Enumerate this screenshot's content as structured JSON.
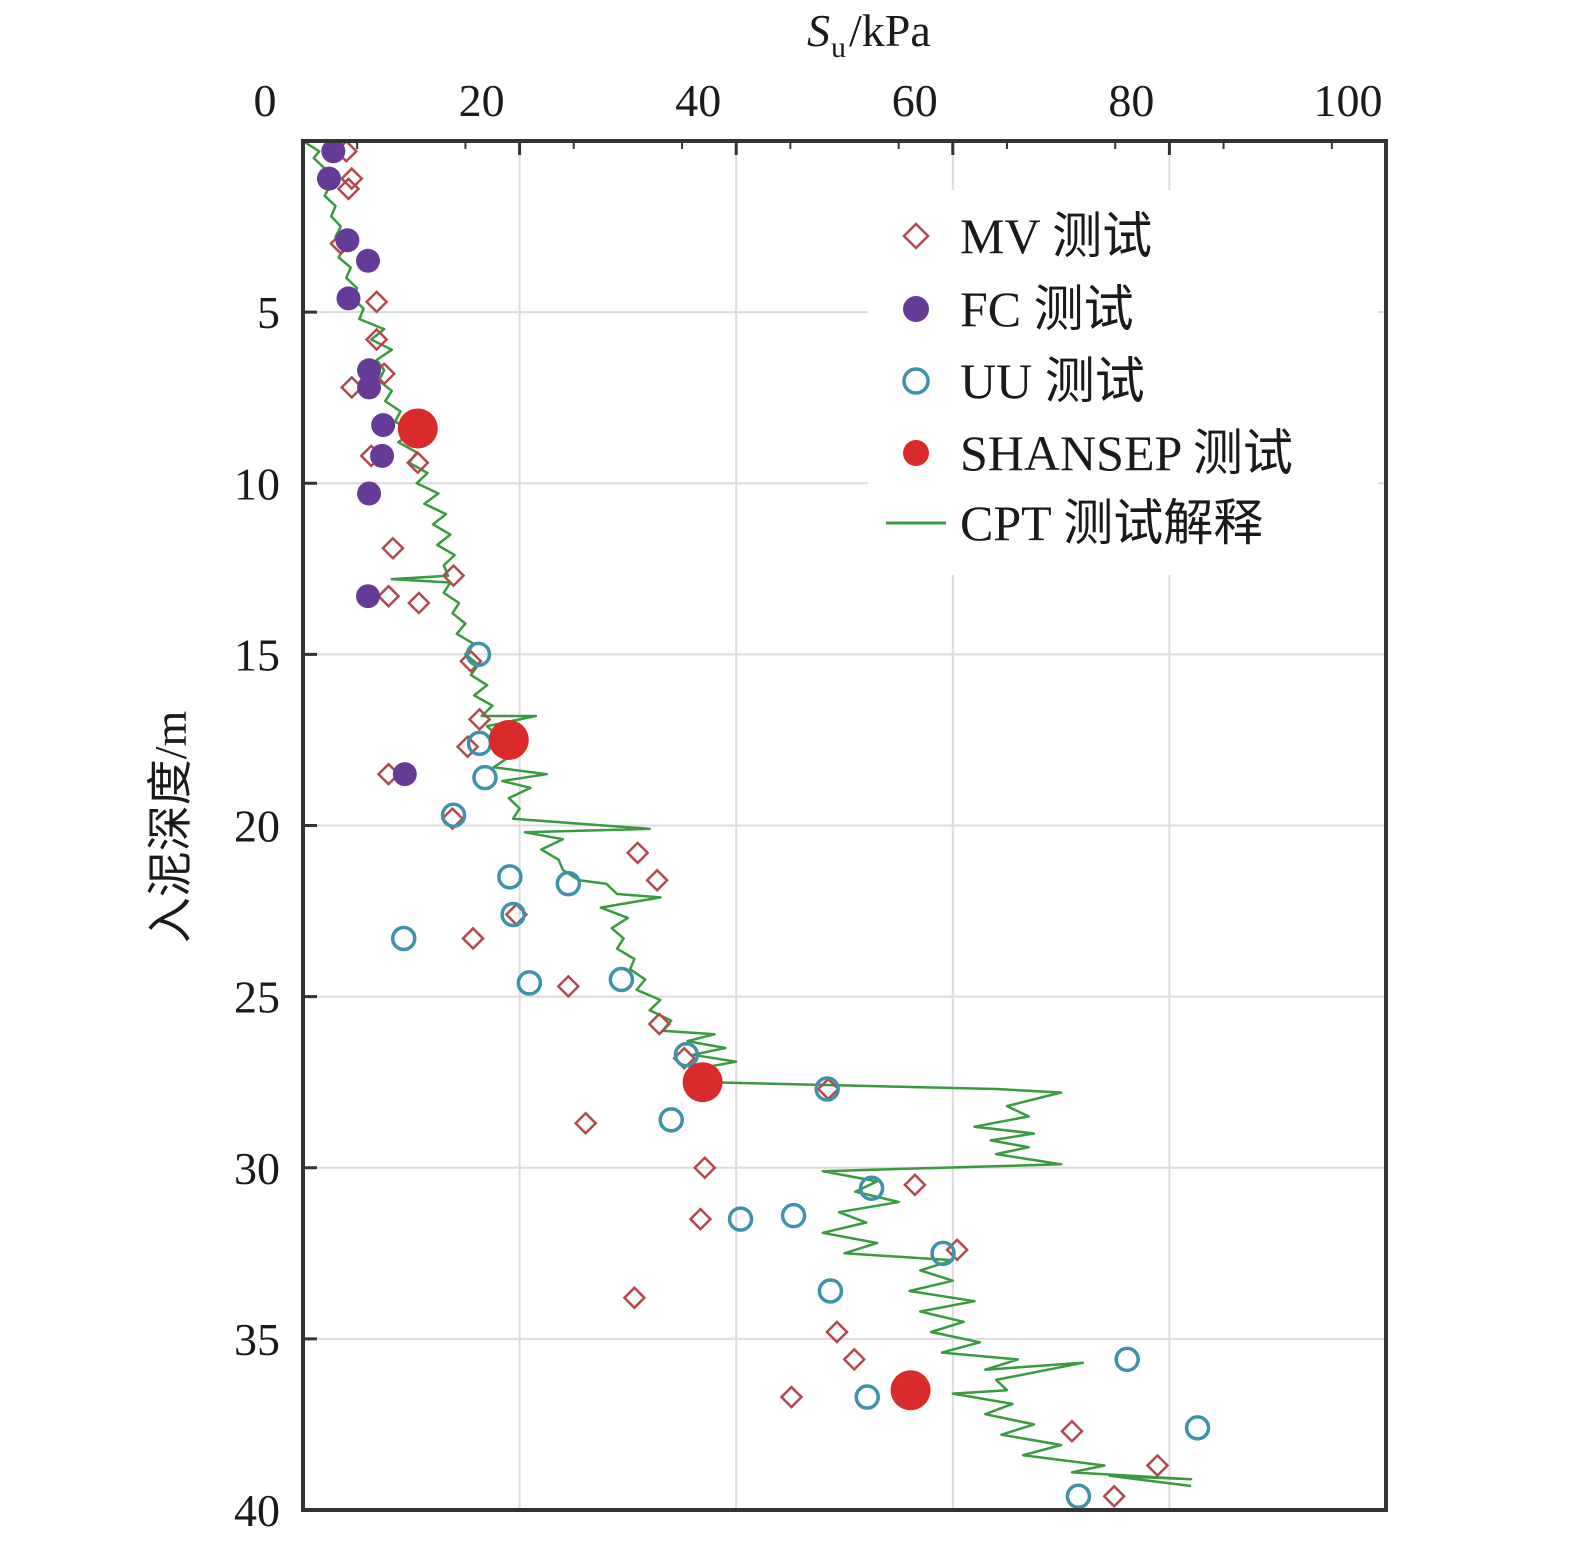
{
  "chart_data": {
    "type": "scatter",
    "x_axis": {
      "label_main": "S",
      "label_sub": "u",
      "label_unit": "/kPa",
      "range": [
        0,
        100
      ],
      "ticks": [
        0,
        20,
        40,
        60,
        80,
        100
      ],
      "position": "top"
    },
    "y_axis": {
      "label": "入泥深度/m",
      "range": [
        0,
        40
      ],
      "ticks": [
        5,
        10,
        15,
        20,
        25,
        30,
        35,
        40
      ],
      "inverted": true
    },
    "grid": true,
    "legend_position": "top-right",
    "colors": {
      "mv": "#b5484f",
      "fc": "#663b97",
      "uu": "#3f92a8",
      "shansep": "#d92b2b",
      "cpt": "#3a9a3f",
      "grid": "#dcdcdc",
      "frame": "#333333"
    },
    "series": [
      {
        "name": "MV 测试",
        "key": "mv",
        "marker": "diamond-open",
        "points": [
          [
            4.0,
            0.3
          ],
          [
            4.5,
            1.1
          ],
          [
            4.2,
            1.4
          ],
          [
            3.5,
            3.0
          ],
          [
            6.8,
            4.7
          ],
          [
            6.8,
            5.8
          ],
          [
            7.5,
            6.8
          ],
          [
            4.5,
            7.2
          ],
          [
            6.3,
            9.2
          ],
          [
            10.6,
            9.4
          ],
          [
            8.3,
            11.9
          ],
          [
            13.9,
            12.7
          ],
          [
            7.9,
            13.3
          ],
          [
            10.7,
            13.5
          ],
          [
            15.5,
            15.2
          ],
          [
            16.3,
            16.9
          ],
          [
            15.2,
            17.7
          ],
          [
            7.9,
            18.5
          ],
          [
            13.8,
            19.8
          ],
          [
            30.9,
            20.8
          ],
          [
            32.7,
            21.6
          ],
          [
            19.7,
            22.6
          ],
          [
            15.7,
            23.3
          ],
          [
            24.5,
            24.7
          ],
          [
            32.9,
            25.8
          ],
          [
            35.2,
            26.8
          ],
          [
            48.5,
            27.7
          ],
          [
            26.1,
            28.7
          ],
          [
            37.1,
            30.0
          ],
          [
            56.5,
            30.5
          ],
          [
            36.7,
            31.5
          ],
          [
            60.4,
            32.4
          ],
          [
            30.6,
            33.8
          ],
          [
            49.3,
            34.8
          ],
          [
            50.9,
            35.6
          ],
          [
            45.1,
            36.7
          ],
          [
            71.0,
            37.7
          ],
          [
            78.9,
            38.7
          ],
          [
            74.9,
            39.6
          ]
        ]
      },
      {
        "name": "FC 测试",
        "key": "fc",
        "marker": "circle-filled",
        "points": [
          [
            2.8,
            0.3
          ],
          [
            2.4,
            1.1
          ],
          [
            4.1,
            2.9
          ],
          [
            6.0,
            3.5
          ],
          [
            4.2,
            4.6
          ],
          [
            6.1,
            6.7
          ],
          [
            6.1,
            7.2
          ],
          [
            7.4,
            8.3
          ],
          [
            7.3,
            9.2
          ],
          [
            6.1,
            10.3
          ],
          [
            6.0,
            13.3
          ],
          [
            9.4,
            18.5
          ]
        ]
      },
      {
        "name": "UU 测试",
        "key": "uu",
        "marker": "circle-open",
        "points": [
          [
            16.2,
            15.0
          ],
          [
            16.3,
            17.6
          ],
          [
            16.8,
            18.6
          ],
          [
            13.9,
            19.7
          ],
          [
            19.1,
            21.5
          ],
          [
            24.5,
            21.7
          ],
          [
            19.4,
            22.6
          ],
          [
            9.3,
            23.3
          ],
          [
            20.9,
            24.6
          ],
          [
            29.4,
            24.5
          ],
          [
            35.4,
            26.7
          ],
          [
            34.0,
            28.6
          ],
          [
            48.4,
            27.7
          ],
          [
            52.5,
            30.6
          ],
          [
            40.4,
            31.5
          ],
          [
            45.3,
            31.4
          ],
          [
            59.1,
            32.5
          ],
          [
            48.7,
            33.6
          ],
          [
            52.1,
            36.7
          ],
          [
            76.1,
            35.6
          ],
          [
            82.6,
            37.6
          ],
          [
            71.6,
            39.6
          ]
        ]
      },
      {
        "name": "SHANSEP 测试",
        "key": "shansep",
        "marker": "circle-filled-large",
        "points": [
          [
            10.6,
            8.4
          ],
          [
            19.0,
            17.5
          ],
          [
            36.9,
            27.5
          ],
          [
            56.1,
            36.5
          ]
        ]
      },
      {
        "name": "CPT 测试解释",
        "key": "cpt",
        "marker": "line",
        "points": [
          [
            0,
            0
          ],
          [
            0.5,
            0.1
          ],
          [
            1.5,
            0.3
          ],
          [
            1.0,
            0.5
          ],
          [
            2.0,
            0.8
          ],
          [
            1.5,
            1.0
          ],
          [
            2.5,
            1.3
          ],
          [
            2.0,
            1.6
          ],
          [
            3.0,
            1.9
          ],
          [
            2.6,
            2.2
          ],
          [
            3.5,
            2.5
          ],
          [
            3.0,
            2.8
          ],
          [
            3.8,
            3.1
          ],
          [
            3.3,
            3.4
          ],
          [
            4.4,
            3.7
          ],
          [
            4.0,
            4.0
          ],
          [
            5.0,
            4.3
          ],
          [
            4.6,
            4.6
          ],
          [
            5.6,
            4.9
          ],
          [
            5.2,
            5.2
          ],
          [
            7.5,
            5.5
          ],
          [
            6.3,
            5.8
          ],
          [
            8.2,
            6.1
          ],
          [
            6.8,
            6.4
          ],
          [
            7.5,
            6.7
          ],
          [
            7.0,
            7.0
          ],
          [
            8.2,
            7.3
          ],
          [
            7.6,
            7.6
          ],
          [
            9.0,
            7.9
          ],
          [
            8.5,
            8.2
          ],
          [
            10.2,
            8.5
          ],
          [
            8.8,
            8.8
          ],
          [
            10.5,
            9.1
          ],
          [
            9.8,
            9.4
          ],
          [
            11.5,
            9.7
          ],
          [
            10.5,
            10.0
          ],
          [
            12.5,
            10.3
          ],
          [
            11.2,
            10.6
          ],
          [
            13.2,
            10.9
          ],
          [
            12.0,
            11.2
          ],
          [
            13.6,
            11.5
          ],
          [
            12.4,
            11.8
          ],
          [
            14.0,
            12.1
          ],
          [
            13.0,
            12.4
          ],
          [
            13.4,
            12.7
          ],
          [
            8.2,
            12.8
          ],
          [
            13.6,
            12.9
          ],
          [
            13.0,
            13.2
          ],
          [
            14.4,
            13.5
          ],
          [
            13.8,
            13.8
          ],
          [
            15.0,
            14.1
          ],
          [
            14.2,
            14.4
          ],
          [
            15.8,
            14.7
          ],
          [
            15.0,
            15.0
          ],
          [
            16.2,
            15.3
          ],
          [
            15.5,
            15.6
          ],
          [
            17.0,
            15.9
          ],
          [
            15.8,
            16.2
          ],
          [
            17.5,
            16.5
          ],
          [
            16.5,
            16.8
          ],
          [
            21.5,
            16.8
          ],
          [
            17.0,
            17.1
          ],
          [
            18.0,
            17.4
          ],
          [
            17.2,
            17.7
          ],
          [
            19.0,
            18.0
          ],
          [
            17.6,
            18.3
          ],
          [
            22.5,
            18.5
          ],
          [
            18.4,
            18.7
          ],
          [
            21.0,
            18.9
          ],
          [
            19.0,
            19.2
          ],
          [
            20.0,
            19.5
          ],
          [
            19.4,
            19.8
          ],
          [
            32.0,
            20.1
          ],
          [
            20.5,
            20.2
          ],
          [
            24.0,
            20.4
          ],
          [
            22.0,
            20.7
          ],
          [
            23.6,
            21.0
          ],
          [
            24.0,
            21.3
          ],
          [
            25.5,
            21.6
          ],
          [
            28.0,
            21.7
          ],
          [
            29.0,
            22.0
          ],
          [
            33.0,
            22.1
          ],
          [
            27.5,
            22.4
          ],
          [
            30.0,
            22.7
          ],
          [
            28.5,
            23.0
          ],
          [
            29.6,
            23.3
          ],
          [
            29.0,
            23.6
          ],
          [
            30.6,
            23.9
          ],
          [
            30.2,
            24.2
          ],
          [
            31.6,
            24.5
          ],
          [
            30.8,
            24.8
          ],
          [
            33.0,
            25.1
          ],
          [
            32.0,
            25.4
          ],
          [
            34.0,
            25.7
          ],
          [
            33.2,
            26.0
          ],
          [
            38.0,
            26.1
          ],
          [
            35.5,
            26.3
          ],
          [
            39.0,
            26.5
          ],
          [
            36.0,
            26.7
          ],
          [
            40.0,
            26.9
          ],
          [
            36.5,
            27.1
          ],
          [
            38.0,
            27.3
          ],
          [
            37.5,
            27.5
          ],
          [
            64.0,
            27.7
          ],
          [
            70.0,
            27.8
          ],
          [
            65.0,
            28.2
          ],
          [
            67.0,
            28.5
          ],
          [
            62.0,
            28.8
          ],
          [
            67.5,
            29.0
          ],
          [
            63.5,
            29.2
          ],
          [
            67.0,
            29.4
          ],
          [
            64.0,
            29.6
          ],
          [
            68.0,
            29.8
          ],
          [
            70.0,
            29.9
          ],
          [
            48.0,
            30.1
          ],
          [
            53.0,
            30.4
          ],
          [
            51.0,
            30.7
          ],
          [
            55.0,
            31.0
          ],
          [
            49.5,
            31.3
          ],
          [
            52.0,
            31.6
          ],
          [
            48.0,
            31.9
          ],
          [
            53.0,
            32.2
          ],
          [
            50.0,
            32.5
          ],
          [
            60.0,
            32.7
          ],
          [
            57.0,
            33.0
          ],
          [
            60.0,
            33.3
          ],
          [
            56.0,
            33.6
          ],
          [
            62.0,
            33.9
          ],
          [
            57.0,
            34.2
          ],
          [
            61.0,
            34.5
          ],
          [
            58.0,
            34.8
          ],
          [
            62.5,
            35.1
          ],
          [
            59.0,
            35.4
          ],
          [
            66.0,
            35.6
          ],
          [
            63.0,
            35.9
          ],
          [
            72.0,
            35.7
          ],
          [
            64.0,
            36.2
          ],
          [
            65.0,
            36.5
          ],
          [
            60.0,
            36.6
          ],
          [
            65.5,
            36.9
          ],
          [
            63.0,
            37.2
          ],
          [
            67.5,
            37.5
          ],
          [
            64.5,
            37.8
          ],
          [
            70.0,
            38.1
          ],
          [
            66.5,
            38.4
          ],
          [
            74.0,
            38.7
          ],
          [
            71.0,
            38.9
          ],
          [
            82.0,
            39.1
          ],
          [
            74.5,
            39.0
          ],
          [
            82.0,
            39.3
          ]
        ]
      }
    ]
  }
}
